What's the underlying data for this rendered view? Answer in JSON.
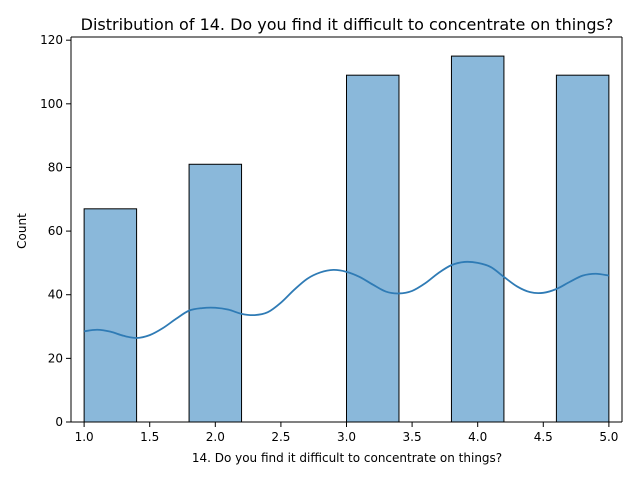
{
  "chart_data": {
    "type": "bar",
    "title": "Distribution of 14. Do you find it difficult to concentrate on things?",
    "xlabel": "14. Do you find it difficult to concentrate on things?",
    "ylabel": "Count",
    "xlim": [
      0.9,
      5.1
    ],
    "ylim": [
      0,
      121
    ],
    "xticks": [
      "1.0",
      "1.5",
      "2.0",
      "2.5",
      "3.0",
      "3.5",
      "4.0",
      "4.5",
      "5.0"
    ],
    "xtick_values": [
      1.0,
      1.5,
      2.0,
      2.5,
      3.0,
      3.5,
      4.0,
      4.5,
      5.0
    ],
    "yticks": [
      "0",
      "20",
      "40",
      "60",
      "80",
      "100",
      "120"
    ],
    "ytick_values": [
      0,
      20,
      40,
      60,
      80,
      100,
      120
    ],
    "bins": [
      {
        "x0": 1.0,
        "x1": 1.4,
        "count": 67
      },
      {
        "x0": 1.4,
        "x1": 1.8,
        "count": 0
      },
      {
        "x0": 1.8,
        "x1": 2.2,
        "count": 81
      },
      {
        "x0": 2.2,
        "x1": 2.6,
        "count": 0
      },
      {
        "x0": 2.6,
        "x1": 3.0,
        "count": 0
      },
      {
        "x0": 3.0,
        "x1": 3.4,
        "count": 109
      },
      {
        "x0": 3.4,
        "x1": 3.8,
        "count": 0
      },
      {
        "x0": 3.8,
        "x1": 4.2,
        "count": 115
      },
      {
        "x0": 4.2,
        "x1": 4.6,
        "count": 0
      },
      {
        "x0": 4.6,
        "x1": 5.0,
        "count": 109
      }
    ],
    "kde": {
      "x": [
        1.0,
        1.1,
        1.2,
        1.3,
        1.4,
        1.5,
        1.6,
        1.7,
        1.8,
        1.9,
        2.0,
        2.1,
        2.2,
        2.3,
        2.4,
        2.5,
        2.6,
        2.7,
        2.8,
        2.9,
        3.0,
        3.1,
        3.2,
        3.3,
        3.4,
        3.5,
        3.6,
        3.7,
        3.8,
        3.9,
        4.0,
        4.1,
        4.2,
        4.3,
        4.4,
        4.5,
        4.6,
        4.7,
        4.8,
        4.9,
        5.0
      ],
      "y": [
        28.5,
        29.0,
        28.4,
        27.1,
        26.4,
        27.3,
        29.5,
        32.4,
        35.0,
        35.8,
        35.9,
        35.3,
        34.0,
        33.6,
        34.5,
        37.5,
        41.5,
        45.0,
        47.0,
        47.8,
        47.2,
        45.6,
        43.2,
        41.0,
        40.4,
        41.2,
        43.6,
        46.8,
        49.3,
        50.3,
        50.0,
        48.7,
        45.6,
        42.6,
        40.8,
        40.6,
        41.8,
        44.0,
        46.0,
        46.6,
        46.0
      ]
    },
    "bar_color": "#8ab8da",
    "bar_edge_color": "#000000",
    "line_color": "#2f7bb5",
    "grid": false,
    "legend": "none"
  }
}
